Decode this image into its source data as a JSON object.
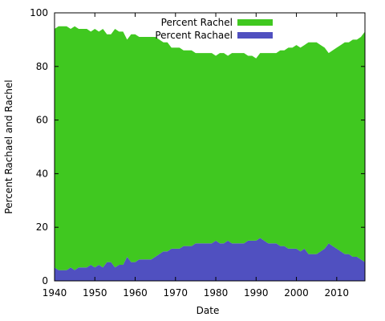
{
  "chart_data": {
    "type": "area",
    "title": "",
    "xlabel": "Date",
    "ylabel": "Percent Rachael and Rachel",
    "xlim": [
      1940,
      2017
    ],
    "ylim": [
      0,
      100
    ],
    "x_ticks": [
      1940,
      1950,
      1960,
      1970,
      1980,
      1990,
      2000,
      2010
    ],
    "y_ticks": [
      0,
      20,
      40,
      60,
      80,
      100
    ],
    "grid": false,
    "legend_position": "top-right",
    "stacked": true,
    "x": [
      1940,
      1941,
      1942,
      1943,
      1944,
      1945,
      1946,
      1947,
      1948,
      1949,
      1950,
      1951,
      1952,
      1953,
      1954,
      1955,
      1956,
      1957,
      1958,
      1959,
      1960,
      1961,
      1962,
      1963,
      1964,
      1965,
      1966,
      1967,
      1968,
      1969,
      1970,
      1971,
      1972,
      1973,
      1974,
      1975,
      1976,
      1977,
      1978,
      1979,
      1980,
      1981,
      1982,
      1983,
      1984,
      1985,
      1986,
      1987,
      1988,
      1989,
      1990,
      1991,
      1992,
      1993,
      1994,
      1995,
      1996,
      1997,
      1998,
      1999,
      2000,
      2001,
      2002,
      2003,
      2004,
      2005,
      2006,
      2007,
      2008,
      2009,
      2010,
      2011,
      2012,
      2013,
      2014,
      2015,
      2016,
      2017
    ],
    "series": [
      {
        "name": "Percent Rachael",
        "color": "#5050c0",
        "values": [
          5,
          4,
          4,
          4,
          5,
          4,
          5,
          5,
          5,
          6,
          5,
          6,
          5,
          7,
          7,
          5,
          6,
          6,
          9,
          7,
          7,
          8,
          8,
          8,
          8,
          9,
          10,
          11,
          11,
          12,
          12,
          12,
          13,
          13,
          13,
          14,
          14,
          14,
          14,
          14,
          15,
          14,
          14,
          15,
          14,
          14,
          14,
          14,
          15,
          15,
          15,
          16,
          15,
          14,
          14,
          14,
          13,
          13,
          12,
          12,
          12,
          11,
          12,
          10,
          10,
          10,
          11,
          12,
          14,
          13,
          12,
          11,
          10,
          10,
          9,
          9,
          8,
          7
        ]
      },
      {
        "name": "Percent Rachel",
        "color": "#40c820",
        "values": [
          89,
          91,
          91,
          91,
          89,
          91,
          89,
          89,
          89,
          87,
          89,
          87,
          89,
          85,
          85,
          89,
          87,
          87,
          81,
          85,
          85,
          83,
          83,
          83,
          83,
          82,
          80,
          78,
          78,
          75,
          75,
          75,
          73,
          73,
          73,
          71,
          71,
          71,
          71,
          71,
          69,
          71,
          71,
          69,
          71,
          71,
          71,
          71,
          69,
          69,
          68,
          69,
          70,
          71,
          71,
          71,
          73,
          73,
          75,
          75,
          76,
          76,
          76,
          79,
          79,
          79,
          77,
          75,
          71,
          73,
          75,
          77,
          79,
          79,
          81,
          81,
          83,
          86
        ]
      }
    ]
  }
}
